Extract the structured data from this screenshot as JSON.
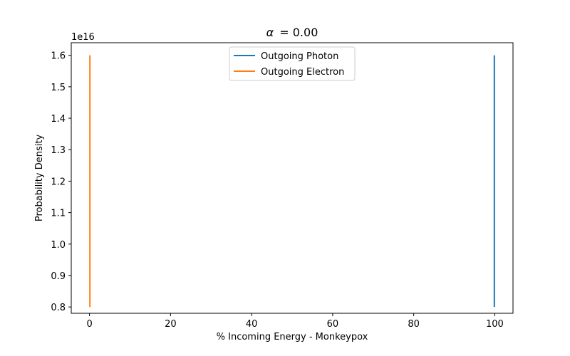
{
  "chart_data": {
    "type": "line",
    "title_var": "α",
    "title_value": "= 0.00",
    "xlabel": "% Incoming Energy - Monkeypox",
    "ylabel": "Probability Density",
    "y_offset_label": "1e16",
    "xlim": [
      -4.5,
      104.5
    ],
    "ylim": [
      0.78,
      1.64
    ],
    "x_ticks": [
      0,
      20,
      40,
      60,
      80,
      100
    ],
    "x_tick_labels": [
      "0",
      "20",
      "40",
      "60",
      "80",
      "100"
    ],
    "y_ticks": [
      0.8,
      0.9,
      1.0,
      1.1,
      1.2,
      1.3,
      1.4,
      1.5,
      1.6
    ],
    "y_tick_labels": [
      "0.8",
      "0.9",
      "1.0",
      "1.1",
      "1.2",
      "1.3",
      "1.4",
      "1.5",
      "1.6"
    ],
    "grid": false,
    "legend_position": "top-center",
    "series": [
      {
        "name": "Outgoing Photon",
        "color": "#1f77b4",
        "x": [
          99.9,
          99.9
        ],
        "y": [
          0.8,
          1.6
        ]
      },
      {
        "name": "Outgoing Electron",
        "color": "#ff7f0e",
        "x": [
          0.1,
          0.1
        ],
        "y": [
          0.8,
          1.6
        ]
      }
    ]
  }
}
